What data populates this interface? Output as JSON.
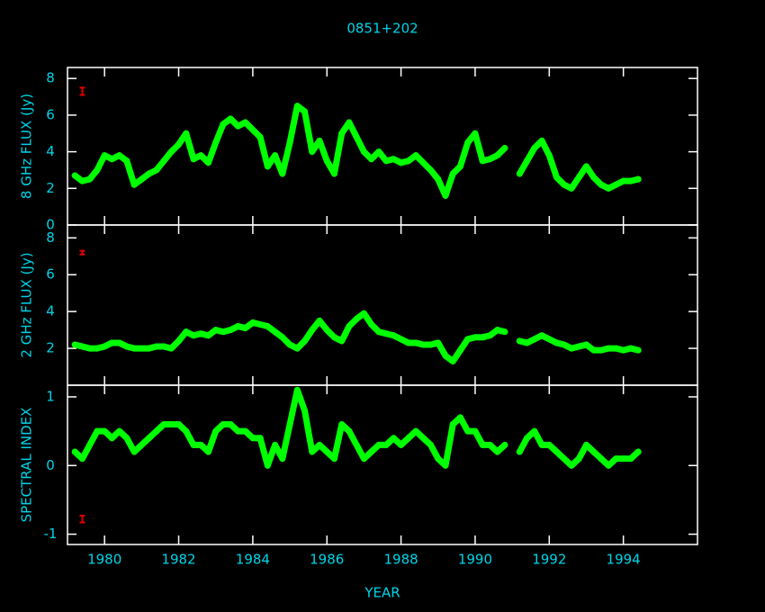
{
  "chart_data": [
    {
      "type": "scatter",
      "title": "0851+202",
      "ylabel": "8 GHz FLUX (Jy)",
      "color": "#00ff00",
      "xlim": [
        1979,
        1996
      ],
      "xticks": [
        1980,
        1982,
        1984,
        1986,
        1988,
        1990,
        1992,
        1994
      ],
      "ylim": [
        0,
        8.6
      ],
      "yticks": [
        0,
        2,
        4,
        6,
        8
      ],
      "x": [
        1979.2,
        1979.4,
        1979.6,
        1979.8,
        1980,
        1980.2,
        1980.4,
        1980.6,
        1980.8,
        1981,
        1981.2,
        1981.4,
        1981.6,
        1981.8,
        1982,
        1982.2,
        1982.4,
        1982.6,
        1982.8,
        1983,
        1983.2,
        1983.4,
        1983.6,
        1983.8,
        1984,
        1984.2,
        1984.4,
        1984.6,
        1984.8,
        1985,
        1985.2,
        1985.4,
        1985.6,
        1985.8,
        1986,
        1986.2,
        1986.4,
        1986.6,
        1986.8,
        1987,
        1987.2,
        1987.4,
        1987.6,
        1987.8,
        1988,
        1988.2,
        1988.4,
        1988.6,
        1988.8,
        1989,
        1989.2,
        1989.4,
        1989.6,
        1989.8,
        1990,
        1990.2,
        1990.4,
        1990.6,
        1990.8,
        1991,
        1991.2,
        1991.4,
        1991.6,
        1991.8,
        1992,
        1992.2,
        1992.4,
        1992.6,
        1992.8,
        1993,
        1993.2,
        1993.4,
        1993.6,
        1993.8,
        1994,
        1994.2,
        1994.4
      ],
      "values": [
        2.7,
        2.4,
        2.5,
        3.0,
        3.8,
        3.6,
        3.8,
        3.5,
        2.2,
        2.5,
        2.8,
        3.0,
        3.5,
        4.0,
        4.4,
        5.0,
        3.6,
        3.8,
        3.4,
        4.5,
        5.5,
        5.8,
        5.4,
        5.6,
        5.2,
        4.8,
        3.2,
        3.8,
        2.8,
        4.5,
        6.5,
        6.2,
        4.0,
        4.6,
        3.5,
        2.8,
        5.0,
        5.6,
        4.8,
        4.0,
        3.6,
        4.0,
        3.5,
        3.6,
        3.4,
        3.5,
        3.8,
        3.4,
        3.0,
        2.5,
        1.6,
        2.8,
        3.2,
        4.5,
        5.0,
        3.5,
        3.6,
        3.8,
        4.2,
        null,
        2.8,
        3.5,
        4.2,
        4.6,
        3.8,
        2.6,
        2.2,
        2.0,
        2.6,
        3.2,
        2.6,
        2.2,
        2.0,
        2.2,
        2.4,
        2.4,
        2.5
      ],
      "error_bar": {
        "x": 1979.4,
        "y": 7.3,
        "err": 0.2,
        "color": "#e00000"
      }
    },
    {
      "type": "scatter",
      "ylabel": "2 GHz FLUX (Jy)",
      "color": "#00ff00",
      "xlim": [
        1979,
        1996
      ],
      "xticks": [
        1980,
        1982,
        1984,
        1986,
        1988,
        1990,
        1992,
        1994
      ],
      "ylim": [
        0,
        8.7
      ],
      "yticks": [
        2,
        4,
        6,
        8
      ],
      "x": [
        1979.2,
        1979.4,
        1979.6,
        1979.8,
        1980,
        1980.2,
        1980.4,
        1980.6,
        1980.8,
        1981,
        1981.2,
        1981.4,
        1981.6,
        1981.8,
        1982,
        1982.2,
        1982.4,
        1982.6,
        1982.8,
        1983,
        1983.2,
        1983.4,
        1983.6,
        1983.8,
        1984,
        1984.2,
        1984.4,
        1984.6,
        1984.8,
        1985,
        1985.2,
        1985.4,
        1985.6,
        1985.8,
        1986,
        1986.2,
        1986.4,
        1986.6,
        1986.8,
        1987,
        1987.2,
        1987.4,
        1987.6,
        1987.8,
        1988,
        1988.2,
        1988.4,
        1988.6,
        1988.8,
        1989,
        1989.2,
        1989.4,
        1989.6,
        1989.8,
        1990,
        1990.2,
        1990.4,
        1990.6,
        1990.8,
        1991,
        1991.2,
        1991.4,
        1991.6,
        1991.8,
        1992,
        1992.2,
        1992.4,
        1992.6,
        1992.8,
        1993,
        1993.2,
        1993.4,
        1993.6,
        1993.8,
        1994,
        1994.2,
        1994.4
      ],
      "values": [
        2.2,
        2.1,
        2.0,
        2.0,
        2.1,
        2.3,
        2.3,
        2.1,
        2.0,
        2.0,
        2.0,
        2.1,
        2.1,
        2.0,
        2.4,
        2.9,
        2.7,
        2.8,
        2.7,
        3.0,
        2.9,
        3.0,
        3.2,
        3.1,
        3.4,
        3.3,
        3.2,
        2.9,
        2.6,
        2.2,
        2.0,
        2.4,
        3.0,
        3.5,
        3.0,
        2.6,
        2.4,
        3.2,
        3.6,
        3.9,
        3.3,
        2.9,
        2.8,
        2.7,
        2.5,
        2.3,
        2.3,
        2.2,
        2.2,
        2.3,
        1.6,
        1.3,
        1.9,
        2.5,
        2.6,
        2.6,
        2.7,
        3.0,
        2.9,
        null,
        2.4,
        2.3,
        2.5,
        2.7,
        2.5,
        2.3,
        2.2,
        2.0,
        2.1,
        2.2,
        1.9,
        1.9,
        2.0,
        2.0,
        1.9,
        2.0,
        1.9
      ],
      "error_bar": {
        "x": 1979.4,
        "y": 7.2,
        "err": 0.1,
        "color": "#e00000"
      }
    },
    {
      "type": "scatter",
      "ylabel": "SPECTRAL INDEX",
      "xlabel": "YEAR",
      "color": "#00ff00",
      "xlim": [
        1979,
        1996
      ],
      "xticks": [
        1980,
        1982,
        1984,
        1986,
        1988,
        1990,
        1992,
        1994
      ],
      "ylim": [
        -1.15,
        1.17
      ],
      "yticks": [
        -1,
        0,
        1
      ],
      "x": [
        1979.2,
        1979.4,
        1979.6,
        1979.8,
        1980,
        1980.2,
        1980.4,
        1980.6,
        1980.8,
        1981,
        1981.2,
        1981.4,
        1981.6,
        1981.8,
        1982,
        1982.2,
        1982.4,
        1982.6,
        1982.8,
        1983,
        1983.2,
        1983.4,
        1983.6,
        1983.8,
        1984,
        1984.2,
        1984.4,
        1984.6,
        1984.8,
        1985,
        1985.2,
        1985.4,
        1985.6,
        1985.8,
        1986,
        1986.2,
        1986.4,
        1986.6,
        1986.8,
        1987,
        1987.2,
        1987.4,
        1987.6,
        1987.8,
        1988,
        1988.2,
        1988.4,
        1988.6,
        1988.8,
        1989,
        1989.2,
        1989.4,
        1989.6,
        1989.8,
        1990,
        1990.2,
        1990.4,
        1990.6,
        1990.8,
        1991,
        1991.2,
        1991.4,
        1991.6,
        1991.8,
        1992,
        1992.2,
        1992.4,
        1992.6,
        1992.8,
        1993,
        1993.2,
        1993.4,
        1993.6,
        1993.8,
        1994,
        1994.2,
        1994.4
      ],
      "values": [
        0.2,
        0.1,
        0.3,
        0.5,
        0.5,
        0.4,
        0.5,
        0.4,
        0.2,
        0.3,
        0.4,
        0.5,
        0.6,
        0.6,
        0.6,
        0.5,
        0.3,
        0.3,
        0.2,
        0.5,
        0.6,
        0.6,
        0.5,
        0.5,
        0.4,
        0.4,
        0.0,
        0.3,
        0.1,
        0.6,
        1.1,
        0.8,
        0.2,
        0.3,
        0.2,
        0.1,
        0.6,
        0.5,
        0.3,
        0.1,
        0.2,
        0.3,
        0.3,
        0.4,
        0.3,
        0.4,
        0.5,
        0.4,
        0.3,
        0.1,
        0.0,
        0.6,
        0.7,
        0.5,
        0.5,
        0.3,
        0.3,
        0.2,
        0.3,
        null,
        0.2,
        0.4,
        0.5,
        0.3,
        0.3,
        0.2,
        0.1,
        0.0,
        0.1,
        0.3,
        0.2,
        0.1,
        0.0,
        0.1,
        0.1,
        0.1,
        0.2
      ],
      "error_bar": {
        "x": 1979.4,
        "y": -0.78,
        "err": 0.05,
        "color": "#e00000"
      }
    }
  ]
}
